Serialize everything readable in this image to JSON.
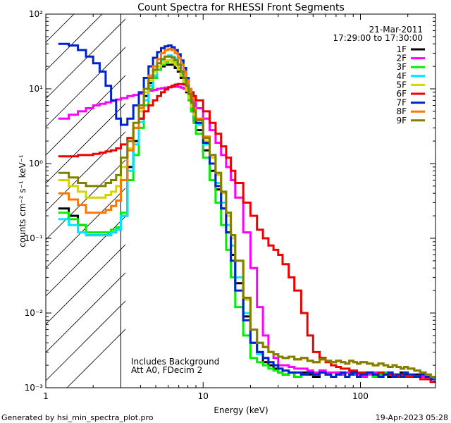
{
  "page": {
    "generated_by": "Generated by hsi_min_spectra_plot.pro",
    "timestamp": "19-Apr-2023 05:28"
  },
  "chart_data": {
    "type": "line",
    "title": "Count Spectra for RHESSI Front Segments",
    "xlabel": "Energy (keV)",
    "ylabel": "counts cm⁻² s⁻¹ keV⁻¹",
    "x_scale": "log",
    "y_scale": "log",
    "xlim": [
      1,
      300
    ],
    "ylim": [
      0.001,
      100
    ],
    "x_tick_labels": [
      {
        "value": 1,
        "label": "1"
      },
      {
        "value": 10,
        "label": "10"
      },
      {
        "value": 100,
        "label": "100"
      }
    ],
    "y_tick_labels": [
      {
        "value": 0.001,
        "label": "10⁻³"
      },
      {
        "value": 0.01,
        "label": "10⁻²"
      },
      {
        "value": 0.1,
        "label": "10⁻¹"
      },
      {
        "value": 1,
        "label": "10⁰"
      },
      {
        "value": 10,
        "label": "10¹"
      },
      {
        "value": 100,
        "label": "10²"
      }
    ],
    "date_label": "21-Mar-2011",
    "time_range_label": "17:29:00 to 17:30:00",
    "annotations": [
      "Includes Background",
      "Att A0, FDecim 2"
    ],
    "excluded_region": {
      "x_min": 1,
      "x_max": 3,
      "style": "hatched"
    },
    "energy_bins_keV": [
      1.2,
      1.4,
      1.6,
      1.8,
      2,
      2.2,
      2.4,
      2.6,
      2.8,
      3,
      3.3,
      3.6,
      3.9,
      4.2,
      4.5,
      4.8,
      5.1,
      5.4,
      5.7,
      6,
      6.3,
      6.6,
      6.9,
      7.2,
      7.5,
      7.8,
      8.1,
      8.4,
      8.7,
      9,
      10,
      11,
      12,
      13,
      14,
      15,
      16,
      18,
      20,
      22,
      24,
      26,
      28,
      30,
      32,
      35,
      38,
      42,
      46,
      50,
      55,
      60,
      65,
      70,
      75,
      80,
      85,
      90,
      95,
      100,
      110,
      120,
      130,
      140,
      150,
      160,
      170,
      180,
      190,
      200,
      220,
      240,
      260,
      280,
      300
    ],
    "series": [
      {
        "name": "1F",
        "color": "#000000",
        "values": [
          0.25,
          0.2,
          0.15,
          0.11,
          0.11,
          0.11,
          0.11,
          0.12,
          0.13,
          0.2,
          0.9,
          2,
          4,
          8,
          12,
          15,
          18,
          20,
          21,
          21,
          21,
          19,
          17,
          14,
          12,
          9,
          7,
          5,
          3.8,
          2.8,
          1.5,
          0.8,
          0.45,
          0.25,
          0.12,
          0.06,
          0.025,
          0.009,
          0.004,
          0.003,
          0.0022,
          0.002,
          0.0018,
          0.0016,
          0.0015,
          0.0016,
          0.0014,
          0.0016,
          0.0015,
          0.0014,
          0.0017,
          0.0015,
          0.0014,
          0.0016,
          0.0015,
          0.0014,
          0.0016,
          0.0015,
          0.0014,
          0.0015,
          0.0016,
          0.0014,
          0.0015,
          0.0016,
          0.0014,
          0.0015,
          0.0014,
          0.0016,
          0.0015,
          0.0014,
          0.0015,
          0.0014,
          0.0013,
          0.0012,
          0.0012
        ]
      },
      {
        "name": "2F",
        "color": "#ff00ff",
        "values": [
          4,
          4.5,
          5,
          5.5,
          6,
          6.3,
          6.6,
          6.9,
          7.2,
          7.5,
          8,
          8.3,
          8.6,
          9,
          9.4,
          9.7,
          10,
          10.2,
          10.4,
          10.5,
          10.6,
          10.7,
          10.6,
          10.4,
          10,
          9.4,
          8.5,
          7.5,
          6.5,
          5.5,
          4,
          2.8,
          1.9,
          1.3,
          0.9,
          0.6,
          0.35,
          0.12,
          0.04,
          0.012,
          0.005,
          0.003,
          0.0025,
          0.002,
          0.002,
          0.0019,
          0.0018,
          0.0018,
          0.0017,
          0.0016,
          0.0017,
          0.0016,
          0.0016,
          0.0016,
          0.0015,
          0.0016,
          0.0015,
          0.0015,
          0.0015,
          0.0014,
          0.0015,
          0.0016,
          0.0014,
          0.0015,
          0.0016,
          0.0015,
          0.0014,
          0.0015,
          0.0014,
          0.0015,
          0.0014,
          0.0014,
          0.0013,
          0.0012,
          0.0012
        ]
      },
      {
        "name": "3F",
        "color": "#00ee00",
        "values": [
          0.22,
          0.18,
          0.15,
          0.12,
          0.12,
          0.12,
          0.12,
          0.13,
          0.14,
          0.22,
          0.6,
          1.3,
          3,
          6,
          10,
          14,
          18,
          21,
          23,
          24,
          24,
          22,
          19,
          16,
          13,
          10,
          7,
          5,
          3.5,
          2.5,
          1.2,
          0.6,
          0.3,
          0.15,
          0.07,
          0.03,
          0.012,
          0.005,
          0.0025,
          0.0022,
          0.002,
          0.0018,
          0.0017,
          0.0016,
          0.0015,
          0.0016,
          0.0014,
          0.0015,
          0.0016,
          0.0015,
          0.0016,
          0.0015,
          0.0014,
          0.0015,
          0.0016,
          0.0014,
          0.0015,
          0.0016,
          0.0014,
          0.0015,
          0.0016,
          0.0014,
          0.0015,
          0.0016,
          0.0015,
          0.0014,
          0.0015,
          0.0014,
          0.0016,
          0.0015,
          0.0014,
          0.0015,
          0.0014,
          0.0013,
          0.0012
        ]
      },
      {
        "name": "4F",
        "color": "#00e5ff",
        "values": [
          0.18,
          0.15,
          0.12,
          0.11,
          0.11,
          0.11,
          0.11,
          0.12,
          0.13,
          0.2,
          0.8,
          1.8,
          3.6,
          7,
          11,
          15,
          20,
          24,
          27,
          28,
          27,
          25,
          21,
          17,
          14,
          11,
          8,
          6,
          4.5,
          3.3,
          1.8,
          1,
          0.55,
          0.3,
          0.15,
          0.08,
          0.03,
          0.01,
          0.004,
          0.0028,
          0.0025,
          0.0022,
          0.002,
          0.0018,
          0.0017,
          0.0016,
          0.0016,
          0.0015,
          0.0016,
          0.0015,
          0.0016,
          0.0015,
          0.0014,
          0.0015,
          0.0016,
          0.0014,
          0.0015,
          0.0016,
          0.0014,
          0.0015,
          0.0016,
          0.0015,
          0.0014,
          0.0015,
          0.0016,
          0.0014,
          0.0015,
          0.0014,
          0.0016,
          0.0015,
          0.0014,
          0.0015,
          0.0014,
          0.0013,
          0.0012
        ]
      },
      {
        "name": "5F",
        "color": "#d4d400",
        "values": [
          0.6,
          0.5,
          0.42,
          0.35,
          0.35,
          0.35,
          0.38,
          0.42,
          0.5,
          0.9,
          1.6,
          3,
          5,
          9,
          13,
          17,
          20,
          22,
          24,
          24,
          23,
          21,
          18,
          15,
          12,
          9.5,
          7.5,
          5.8,
          4.5,
          3.5,
          2,
          1.2,
          0.7,
          0.4,
          0.2,
          0.1,
          0.05,
          0.015,
          0.006,
          0.004,
          0.0035,
          0.003,
          0.0028,
          0.0026,
          0.0025,
          0.0026,
          0.0024,
          0.0025,
          0.0023,
          0.0022,
          0.0024,
          0.0023,
          0.0022,
          0.0023,
          0.0022,
          0.0021,
          0.0023,
          0.0022,
          0.0021,
          0.0022,
          0.0021,
          0.002,
          0.0021,
          0.002,
          0.0019,
          0.002,
          0.0019,
          0.0018,
          0.0019,
          0.0018,
          0.0017,
          0.0016,
          0.0015,
          0.0014,
          0.0013
        ]
      },
      {
        "name": "6F",
        "color": "#ee0000",
        "values": [
          1.25,
          1.25,
          1.3,
          1.3,
          1.35,
          1.4,
          1.45,
          1.5,
          1.6,
          1.8,
          2.2,
          3,
          4,
          5,
          6,
          7,
          8,
          9,
          9.8,
          10.5,
          11,
          11.4,
          11.6,
          11.6,
          11.4,
          11,
          10,
          9,
          8,
          7,
          5,
          3.5,
          2.5,
          1.7,
          1.2,
          0.8,
          0.55,
          0.3,
          0.2,
          0.13,
          0.1,
          0.08,
          0.07,
          0.06,
          0.045,
          0.03,
          0.02,
          0.01,
          0.005,
          0.003,
          0.0025,
          0.0022,
          0.002,
          0.0019,
          0.0018,
          0.0018,
          0.0017,
          0.0017,
          0.0016,
          0.0016,
          0.0016,
          0.0015,
          0.0016,
          0.0015,
          0.0015,
          0.0015,
          0.0014,
          0.0015,
          0.0014,
          0.0014,
          0.0014,
          0.0013,
          0.0013,
          0.0012,
          0.0012
        ]
      },
      {
        "name": "7F",
        "color": "#0022cc",
        "values": [
          40,
          38,
          33,
          27,
          22,
          17,
          11,
          7,
          4,
          3.3,
          4,
          6,
          9,
          14,
          20,
          26,
          31,
          35,
          37,
          38,
          36,
          33,
          29,
          24,
          19,
          14,
          10,
          7,
          5,
          3.5,
          1.9,
          1,
          0.5,
          0.25,
          0.12,
          0.05,
          0.02,
          0.008,
          0.004,
          0.003,
          0.0025,
          0.0022,
          0.002,
          0.0018,
          0.0017,
          0.0016,
          0.0016,
          0.0015,
          0.0016,
          0.0015,
          0.0016,
          0.0015,
          0.0014,
          0.0015,
          0.0016,
          0.0014,
          0.0015,
          0.0016,
          0.0014,
          0.0015,
          0.0016,
          0.0015,
          0.0014,
          0.0015,
          0.0016,
          0.0014,
          0.0015,
          0.0014,
          0.0016,
          0.0015,
          0.0014,
          0.0015,
          0.0014,
          0.0013,
          0.0012
        ]
      },
      {
        "name": "8F",
        "color": "#ff7700",
        "values": [
          0.4,
          0.33,
          0.28,
          0.22,
          0.22,
          0.22,
          0.24,
          0.27,
          0.32,
          0.6,
          1.5,
          3,
          5.5,
          10,
          15,
          20,
          25,
          30,
          33,
          34,
          33,
          30,
          26,
          21,
          17,
          13,
          10,
          7.5,
          5.5,
          4,
          2.3,
          1.3,
          0.75,
          0.42,
          0.22,
          0.11,
          0.05,
          0.016,
          0.006,
          0.004,
          0.0035,
          0.003,
          0.0028,
          0.0026,
          0.0025,
          0.0026,
          0.0024,
          0.0025,
          0.0023,
          0.0022,
          0.0024,
          0.0023,
          0.0022,
          0.0023,
          0.0022,
          0.0021,
          0.0023,
          0.0022,
          0.0021,
          0.0022,
          0.0021,
          0.002,
          0.0021,
          0.002,
          0.0019,
          0.002,
          0.0019,
          0.0018,
          0.0019,
          0.0018,
          0.0017,
          0.0016,
          0.0015,
          0.0014,
          0.0013
        ]
      },
      {
        "name": "9F",
        "color": "#7f7f00",
        "values": [
          0.75,
          0.65,
          0.55,
          0.5,
          0.5,
          0.5,
          0.55,
          0.6,
          0.7,
          1.2,
          2,
          3.5,
          6,
          10,
          14,
          18,
          22,
          25,
          27,
          27,
          26,
          24,
          21,
          17,
          14,
          11,
          8.5,
          6.5,
          5,
          3.8,
          2.2,
          1.3,
          0.75,
          0.42,
          0.22,
          0.11,
          0.05,
          0.016,
          0.006,
          0.004,
          0.0035,
          0.003,
          0.0028,
          0.0026,
          0.0025,
          0.0026,
          0.0024,
          0.0025,
          0.0023,
          0.0022,
          0.0024,
          0.0023,
          0.0022,
          0.0023,
          0.0022,
          0.0021,
          0.0023,
          0.0022,
          0.0021,
          0.0022,
          0.0021,
          0.002,
          0.0021,
          0.002,
          0.0019,
          0.002,
          0.0019,
          0.0018,
          0.0019,
          0.0018,
          0.0017,
          0.0016,
          0.0015,
          0.0014,
          0.0013
        ]
      }
    ]
  }
}
